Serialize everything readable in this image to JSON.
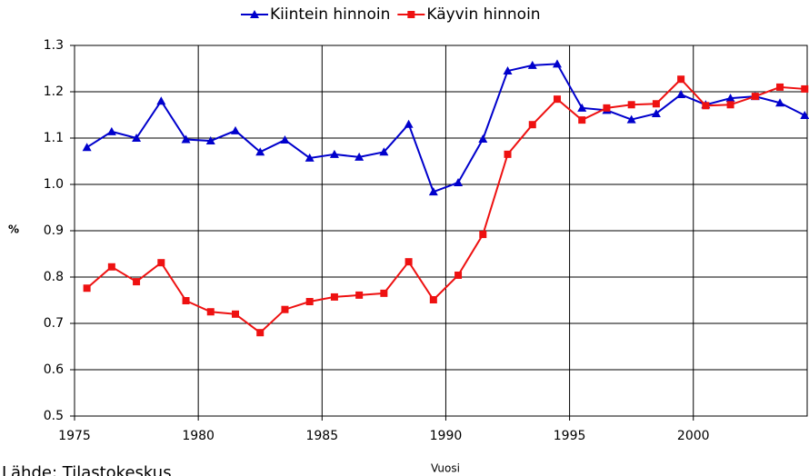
{
  "chart_data": {
    "type": "line",
    "x_label": "Vuosi",
    "y_label": "%",
    "source": "Lähde: Tilastokeskus",
    "x": [
      1975.5,
      1976.5,
      1977.5,
      1978.5,
      1979.5,
      1980.5,
      1981.5,
      1982.5,
      1983.5,
      1984.5,
      1985.5,
      1986.5,
      1987.5,
      1988.5,
      1989.5,
      1990.5,
      1991.5,
      1992.5,
      1993.5,
      1994.5,
      1995.5,
      1996.5,
      1997.5,
      1998.5,
      1999.5,
      2000.5,
      2001.5,
      2002.5,
      2003.5,
      2004.5
    ],
    "series": [
      {
        "name": "Kiintein hinnoin",
        "color": "#0000cc",
        "marker": "triangle",
        "values": [
          1.08,
          1.114,
          1.1,
          1.18,
          1.097,
          1.094,
          1.116,
          1.07,
          1.096,
          1.057,
          1.065,
          1.059,
          1.07,
          1.13,
          0.984,
          1.004,
          1.098,
          1.245,
          1.257,
          1.26,
          1.165,
          1.16,
          1.14,
          1.153,
          1.194,
          1.172,
          1.186,
          1.19,
          1.176,
          1.149
        ]
      },
      {
        "name": "Käyvin hinnoin",
        "color": "#ee1111",
        "marker": "square",
        "values": [
          0.776,
          0.822,
          0.79,
          0.831,
          0.749,
          0.725,
          0.72,
          0.68,
          0.73,
          0.747,
          0.757,
          0.761,
          0.765,
          0.833,
          0.751,
          0.804,
          0.892,
          1.065,
          1.129,
          1.184,
          1.139,
          1.165,
          1.172,
          1.174,
          1.227,
          1.17,
          1.172,
          1.19,
          1.21,
          1.206
        ]
      }
    ],
    "xlim": [
      1975,
      2004.6
    ],
    "xticks": [
      1975,
      1980,
      1985,
      1990,
      1995,
      2000
    ],
    "ylim": [
      0.5,
      1.3
    ],
    "yticks": [
      1.3,
      1.2,
      1.1,
      {
        "value": 1,
        "label": "1.0"
      },
      0.9,
      0.8,
      0.7,
      0.6,
      0.5
    ],
    "grid": true,
    "legend": "top"
  }
}
